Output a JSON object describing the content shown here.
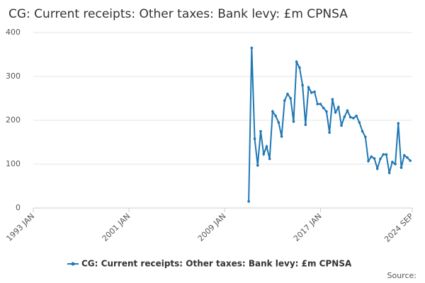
{
  "chart_data": {
    "type": "line",
    "title": "CG: Current receipts: Other taxes: Bank levy: £m CPNSA",
    "source": "Source:",
    "xlim": [
      "1993 JAN",
      "2024 SEP"
    ],
    "xticks": [
      "1993 JAN",
      "2001 JAN",
      "2009 JAN",
      "2017 JAN",
      "2024 SEP"
    ],
    "ylim": [
      0,
      400
    ],
    "yticks": [
      0,
      100,
      200,
      300,
      400
    ],
    "grid": true,
    "x": [
      "2011 JAN",
      "2011 APR",
      "2011 JUL",
      "2011 OCT",
      "2012 JAN",
      "2012 APR",
      "2012 JUL",
      "2012 OCT",
      "2013 JAN",
      "2013 APR",
      "2013 JUL",
      "2013 OCT",
      "2014 JAN",
      "2014 APR",
      "2014 JUL",
      "2014 OCT",
      "2015 JAN",
      "2015 APR",
      "2015 JUL",
      "2015 OCT",
      "2016 JAN",
      "2016 APR",
      "2016 JUL",
      "2016 OCT",
      "2017 JAN",
      "2017 APR",
      "2017 JUL",
      "2017 OCT",
      "2018 JAN",
      "2018 APR",
      "2018 JUL",
      "2018 OCT",
      "2019 JAN",
      "2019 APR",
      "2019 JUL",
      "2019 OCT",
      "2020 JAN",
      "2020 APR",
      "2020 JUL",
      "2020 OCT",
      "2021 JAN",
      "2021 APR",
      "2021 JUL",
      "2021 OCT",
      "2022 JAN",
      "2022 APR",
      "2022 JUL",
      "2022 OCT",
      "2023 JAN",
      "2023 APR",
      "2023 JUL",
      "2023 OCT",
      "2024 JAN",
      "2024 APR",
      "2024 JUL"
    ],
    "series": [
      {
        "name": "CG: Current receipts: Other taxes: Bank levy: £m CPNSA",
        "color": "#1f77b4",
        "values": [
          15,
          365,
          158,
          97,
          175,
          123,
          140,
          112,
          220,
          210,
          195,
          163,
          245,
          260,
          250,
          197,
          333,
          320,
          280,
          190,
          275,
          263,
          265,
          237,
          237,
          228,
          220,
          172,
          248,
          218,
          230,
          188,
          208,
          222,
          207,
          205,
          210,
          195,
          175,
          162,
          107,
          117,
          113,
          90,
          112,
          122,
          122,
          80,
          105,
          100,
          193,
          92,
          120,
          115,
          108
        ]
      }
    ]
  }
}
